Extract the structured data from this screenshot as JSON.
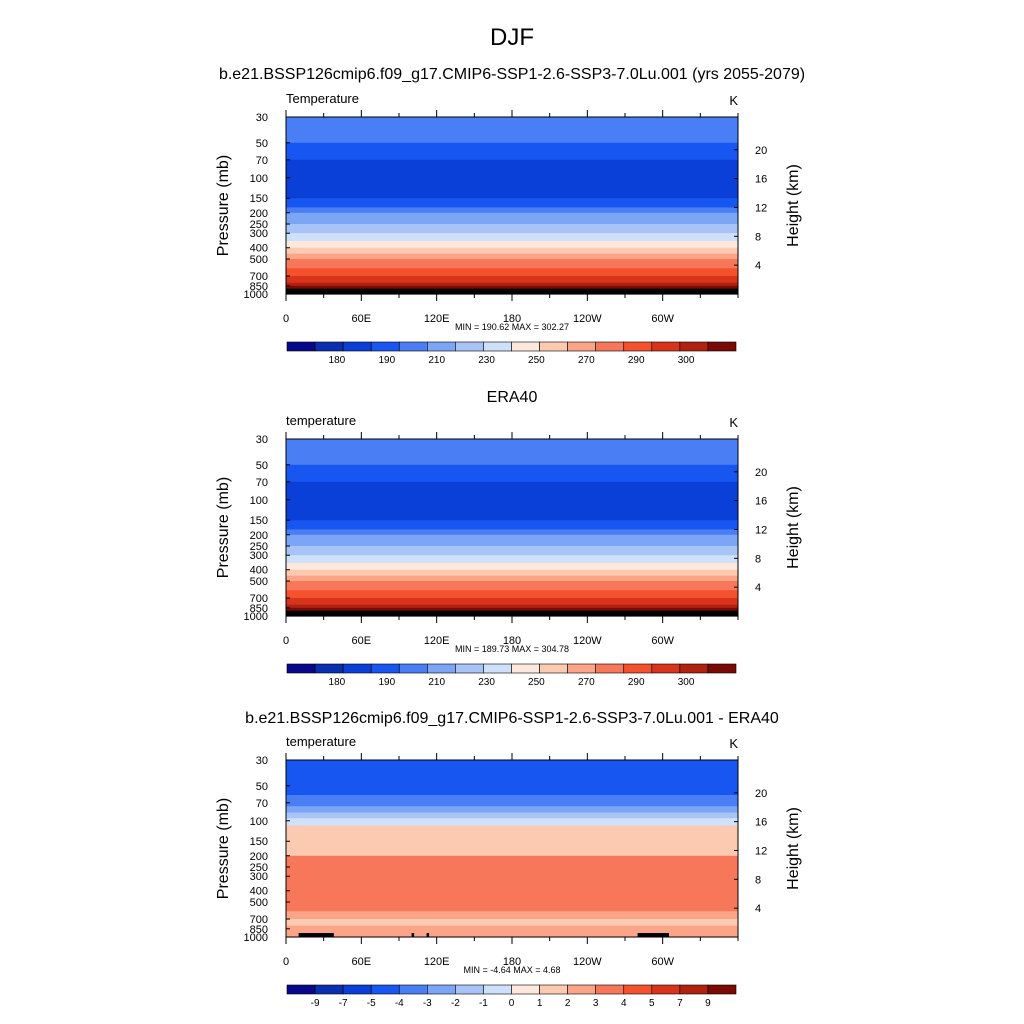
{
  "figure": {
    "title": "DJF",
    "subtitle": "b.e21.BSSP126cmip6.f09_g17.CMIP6-SSP1-2.6-SSP3-7.0Lu.001 (yrs 2055-2079)"
  },
  "chart_data": [
    {
      "type": "heatmap",
      "panel_title": "",
      "left_label": "Temperature",
      "unit_label": "K",
      "xlabel": "",
      "ylabel": "Pressure (mb)",
      "ylabel_right": "Height (km)",
      "x_ticks": [
        "0",
        "60E",
        "120E",
        "180",
        "120W",
        "60W"
      ],
      "x_tick_lon": [
        0,
        60,
        120,
        180,
        240,
        300
      ],
      "xlim": [
        0,
        360
      ],
      "y_ticks": [
        30,
        50,
        70,
        100,
        150,
        200,
        250,
        300,
        400,
        500,
        700,
        850,
        1000
      ],
      "ylim": [
        30,
        1000
      ],
      "y_scale": "log",
      "height_ticks": [
        20,
        16,
        12,
        8,
        4
      ],
      "stats": "MIN = 190.62  MAX = 302.27",
      "colorbar_labels": [
        "180",
        "190",
        "210",
        "230",
        "250",
        "270",
        "290",
        "300"
      ],
      "pressure_levels": [
        30,
        40,
        50,
        70,
        100,
        130,
        150,
        180,
        200,
        250,
        300,
        350,
        400,
        450,
        500,
        600,
        700,
        800,
        850,
        900,
        1000
      ],
      "band_color_index": [
        4,
        4,
        3,
        2,
        2,
        2,
        3,
        4,
        5,
        6,
        7,
        8,
        9,
        10,
        11,
        12,
        13,
        14,
        15,
        16
      ],
      "terrain_lon_ranges": [
        [
          10,
          38
        ],
        [
          30,
          34
        ],
        [
          100,
          102
        ],
        [
          112,
          114
        ],
        [
          280,
          305
        ]
      ]
    },
    {
      "type": "heatmap",
      "panel_title": "ERA40",
      "left_label": "temperature",
      "unit_label": "K",
      "xlabel": "",
      "ylabel": "Pressure (mb)",
      "ylabel_right": "Height (km)",
      "x_ticks": [
        "0",
        "60E",
        "120E",
        "180",
        "120W",
        "60W"
      ],
      "x_tick_lon": [
        0,
        60,
        120,
        180,
        240,
        300
      ],
      "xlim": [
        0,
        360
      ],
      "y_ticks": [
        30,
        50,
        70,
        100,
        150,
        200,
        250,
        300,
        400,
        500,
        700,
        850,
        1000
      ],
      "ylim": [
        30,
        1000
      ],
      "y_scale": "log",
      "height_ticks": [
        20,
        16,
        12,
        8,
        4
      ],
      "stats": "MIN = 189.73  MAX = 304.78",
      "colorbar_labels": [
        "180",
        "190",
        "210",
        "230",
        "250",
        "270",
        "290",
        "300"
      ],
      "pressure_levels": [
        30,
        40,
        50,
        70,
        100,
        130,
        150,
        180,
        200,
        250,
        300,
        350,
        400,
        450,
        500,
        600,
        700,
        800,
        850,
        900,
        1000
      ],
      "band_color_index": [
        4,
        4,
        3,
        2,
        2,
        2,
        3,
        4,
        5,
        6,
        7,
        8,
        9,
        10,
        11,
        12,
        13,
        14,
        15,
        16
      ],
      "terrain_lon_ranges": []
    },
    {
      "type": "heatmap",
      "panel_title": "b.e21.BSSP126cmip6.f09_g17.CMIP6-SSP1-2.6-SSP3-7.0Lu.001 - ERA40",
      "left_label": "temperature",
      "unit_label": "K",
      "xlabel": "",
      "ylabel": "Pressure (mb)",
      "ylabel_right": "Height (km)",
      "x_ticks": [
        "0",
        "60E",
        "120E",
        "180",
        "120W",
        "60W"
      ],
      "x_tick_lon": [
        0,
        60,
        120,
        180,
        240,
        300
      ],
      "xlim": [
        0,
        360
      ],
      "y_ticks": [
        30,
        50,
        70,
        100,
        150,
        200,
        250,
        300,
        400,
        500,
        700,
        850,
        1000
      ],
      "ylim": [
        30,
        1000
      ],
      "y_scale": "log",
      "height_ticks": [
        20,
        16,
        12,
        8,
        4
      ],
      "stats": "MIN =  -4.64  MAX =   4.68",
      "colorbar_labels": [
        "-9",
        "-7",
        "-5",
        "-4",
        "-3",
        "-2",
        "-1",
        "0",
        "1",
        "2",
        "3",
        "4",
        "5",
        "7",
        "9"
      ],
      "pressure_levels": [
        30,
        60,
        75,
        85,
        95,
        110,
        200,
        500,
        600,
        700,
        800,
        1000
      ],
      "band_color_index": [
        3,
        4,
        5,
        6,
        7,
        9,
        11,
        11,
        10,
        9,
        10
      ],
      "terrain_lon_ranges": [
        [
          10,
          38
        ],
        [
          30,
          34
        ],
        [
          100,
          102
        ],
        [
          112,
          114
        ],
        [
          280,
          305
        ]
      ]
    }
  ],
  "palette": [
    "#08088a",
    "#0a2eb0",
    "#0b40d8",
    "#1756f0",
    "#4a7ef5",
    "#7da5f5",
    "#a8c4f7",
    "#cfe0fa",
    "#fde9dc",
    "#fccab0",
    "#fba487",
    "#f7775a",
    "#f4522e",
    "#d8341b",
    "#b0220f",
    "#7a0a05"
  ]
}
